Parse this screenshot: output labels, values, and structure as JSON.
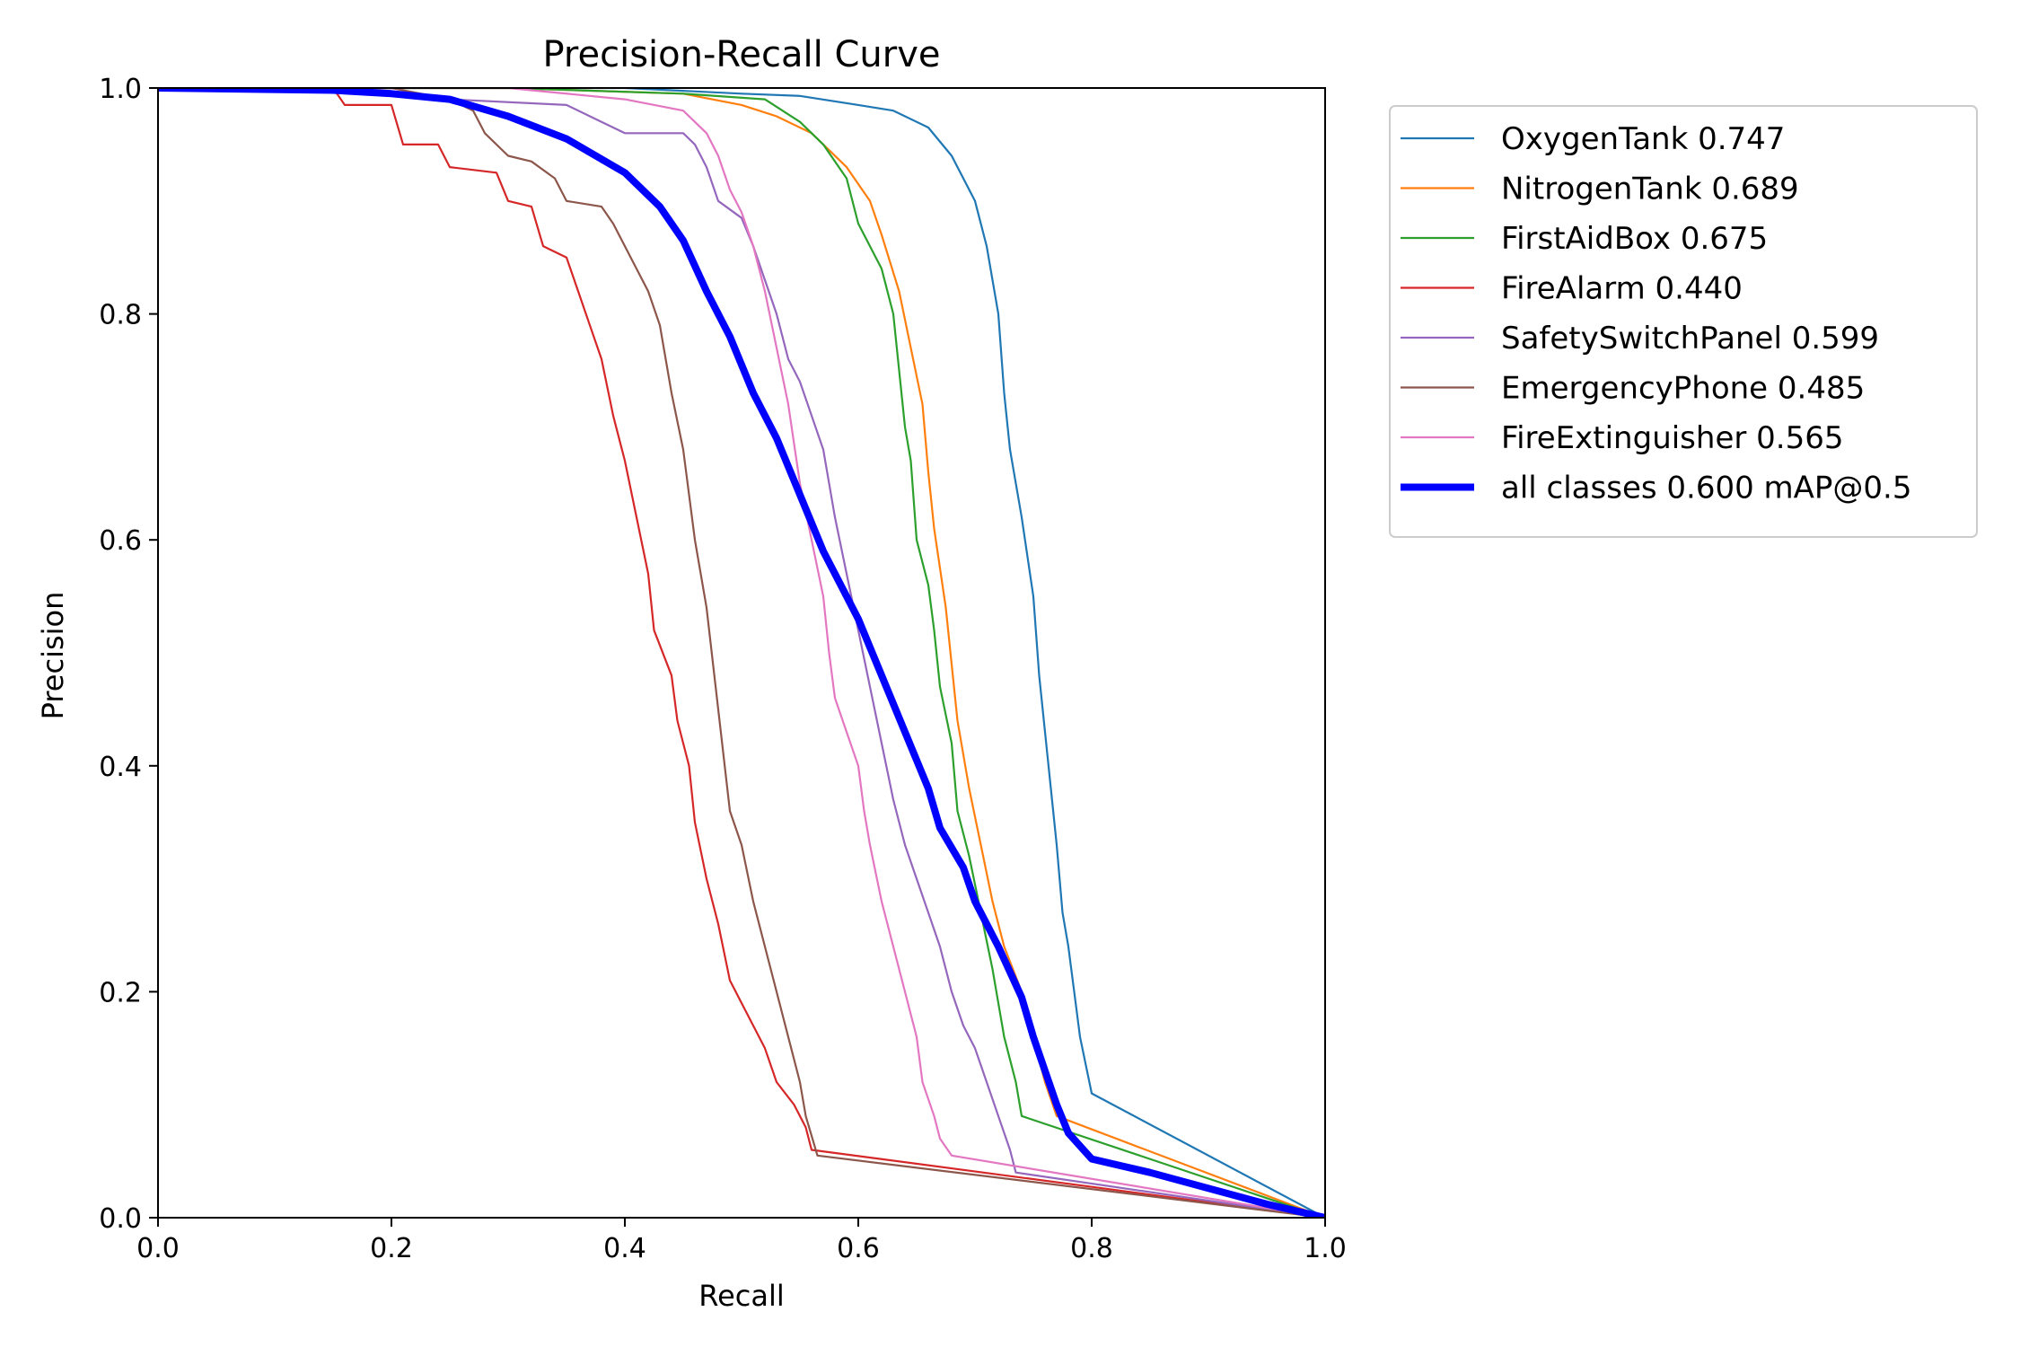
{
  "chart_data": {
    "type": "line",
    "title": "Precision-Recall Curve",
    "xlabel": "Recall",
    "ylabel": "Precision",
    "xlim": [
      0,
      1
    ],
    "ylim": [
      0,
      1
    ],
    "x_ticks": [
      "0.0",
      "0.2",
      "0.4",
      "0.6",
      "0.8",
      "1.0"
    ],
    "y_ticks": [
      "0.0",
      "0.2",
      "0.4",
      "0.6",
      "0.8",
      "1.0"
    ],
    "grid": false,
    "legend_position": "outside-top-right",
    "series": [
      {
        "name": "OxygenTank 0.747",
        "color": "#1f77b4",
        "points": [
          [
            0,
            1
          ],
          [
            0.2,
            1
          ],
          [
            0.4,
            1
          ],
          [
            0.5,
            0.995
          ],
          [
            0.55,
            0.993
          ],
          [
            0.6,
            0.985
          ],
          [
            0.63,
            0.98
          ],
          [
            0.66,
            0.965
          ],
          [
            0.68,
            0.94
          ],
          [
            0.7,
            0.9
          ],
          [
            0.71,
            0.86
          ],
          [
            0.72,
            0.8
          ],
          [
            0.725,
            0.73
          ],
          [
            0.73,
            0.68
          ],
          [
            0.74,
            0.62
          ],
          [
            0.75,
            0.55
          ],
          [
            0.755,
            0.48
          ],
          [
            0.76,
            0.43
          ],
          [
            0.765,
            0.38
          ],
          [
            0.77,
            0.33
          ],
          [
            0.775,
            0.27
          ],
          [
            0.78,
            0.24
          ],
          [
            0.785,
            0.2
          ],
          [
            0.79,
            0.16
          ],
          [
            0.8,
            0.11
          ],
          [
            1.0,
            0.0
          ]
        ]
      },
      {
        "name": "NitrogenTank 0.689",
        "color": "#ff7f0e",
        "points": [
          [
            0,
            1
          ],
          [
            0.3,
            1
          ],
          [
            0.45,
            0.995
          ],
          [
            0.5,
            0.985
          ],
          [
            0.53,
            0.975
          ],
          [
            0.56,
            0.96
          ],
          [
            0.59,
            0.93
          ],
          [
            0.61,
            0.9
          ],
          [
            0.62,
            0.87
          ],
          [
            0.635,
            0.82
          ],
          [
            0.645,
            0.77
          ],
          [
            0.655,
            0.72
          ],
          [
            0.66,
            0.66
          ],
          [
            0.665,
            0.61
          ],
          [
            0.675,
            0.54
          ],
          [
            0.68,
            0.49
          ],
          [
            0.685,
            0.44
          ],
          [
            0.695,
            0.38
          ],
          [
            0.705,
            0.33
          ],
          [
            0.715,
            0.28
          ],
          [
            0.725,
            0.24
          ],
          [
            0.74,
            0.2
          ],
          [
            0.75,
            0.16
          ],
          [
            0.76,
            0.12
          ],
          [
            0.77,
            0.09
          ],
          [
            1.0,
            0.0
          ]
        ]
      },
      {
        "name": "FirstAidBox 0.675",
        "color": "#2ca02c",
        "points": [
          [
            0,
            1
          ],
          [
            0.3,
            1
          ],
          [
            0.45,
            0.995
          ],
          [
            0.52,
            0.99
          ],
          [
            0.55,
            0.97
          ],
          [
            0.57,
            0.95
          ],
          [
            0.59,
            0.92
          ],
          [
            0.6,
            0.88
          ],
          [
            0.62,
            0.84
          ],
          [
            0.63,
            0.8
          ],
          [
            0.635,
            0.75
          ],
          [
            0.64,
            0.7
          ],
          [
            0.645,
            0.67
          ],
          [
            0.65,
            0.6
          ],
          [
            0.66,
            0.56
          ],
          [
            0.665,
            0.52
          ],
          [
            0.67,
            0.47
          ],
          [
            0.68,
            0.42
          ],
          [
            0.685,
            0.36
          ],
          [
            0.695,
            0.32
          ],
          [
            0.705,
            0.27
          ],
          [
            0.715,
            0.22
          ],
          [
            0.725,
            0.16
          ],
          [
            0.735,
            0.12
          ],
          [
            0.74,
            0.09
          ],
          [
            1.0,
            0.0
          ]
        ]
      },
      {
        "name": "FireAlarm 0.440",
        "color": "#d62728",
        "points": [
          [
            0,
            1
          ],
          [
            0.15,
            1
          ],
          [
            0.16,
            0.985
          ],
          [
            0.2,
            0.985
          ],
          [
            0.21,
            0.95
          ],
          [
            0.24,
            0.95
          ],
          [
            0.25,
            0.93
          ],
          [
            0.29,
            0.925
          ],
          [
            0.3,
            0.9
          ],
          [
            0.32,
            0.895
          ],
          [
            0.33,
            0.86
          ],
          [
            0.35,
            0.85
          ],
          [
            0.36,
            0.82
          ],
          [
            0.37,
            0.79
          ],
          [
            0.38,
            0.76
          ],
          [
            0.39,
            0.71
          ],
          [
            0.4,
            0.67
          ],
          [
            0.41,
            0.62
          ],
          [
            0.42,
            0.57
          ],
          [
            0.425,
            0.52
          ],
          [
            0.44,
            0.48
          ],
          [
            0.445,
            0.44
          ],
          [
            0.455,
            0.4
          ],
          [
            0.46,
            0.35
          ],
          [
            0.47,
            0.3
          ],
          [
            0.48,
            0.26
          ],
          [
            0.49,
            0.21
          ],
          [
            0.5,
            0.19
          ],
          [
            0.51,
            0.17
          ],
          [
            0.52,
            0.15
          ],
          [
            0.53,
            0.12
          ],
          [
            0.545,
            0.1
          ],
          [
            0.555,
            0.08
          ],
          [
            0.56,
            0.06
          ],
          [
            1.0,
            0.0
          ]
        ]
      },
      {
        "name": "SafetySwitchPanel 0.599",
        "color": "#9467bd",
        "points": [
          [
            0,
            1
          ],
          [
            0.15,
            0.998
          ],
          [
            0.25,
            0.99
          ],
          [
            0.35,
            0.985
          ],
          [
            0.38,
            0.97
          ],
          [
            0.4,
            0.96
          ],
          [
            0.45,
            0.96
          ],
          [
            0.46,
            0.95
          ],
          [
            0.47,
            0.93
          ],
          [
            0.48,
            0.9
          ],
          [
            0.5,
            0.885
          ],
          [
            0.51,
            0.86
          ],
          [
            0.52,
            0.83
          ],
          [
            0.53,
            0.8
          ],
          [
            0.54,
            0.76
          ],
          [
            0.55,
            0.74
          ],
          [
            0.56,
            0.71
          ],
          [
            0.57,
            0.68
          ],
          [
            0.58,
            0.62
          ],
          [
            0.59,
            0.57
          ],
          [
            0.6,
            0.52
          ],
          [
            0.61,
            0.47
          ],
          [
            0.62,
            0.42
          ],
          [
            0.63,
            0.37
          ],
          [
            0.64,
            0.33
          ],
          [
            0.65,
            0.3
          ],
          [
            0.66,
            0.27
          ],
          [
            0.67,
            0.24
          ],
          [
            0.68,
            0.2
          ],
          [
            0.69,
            0.17
          ],
          [
            0.7,
            0.15
          ],
          [
            0.71,
            0.12
          ],
          [
            0.72,
            0.09
          ],
          [
            0.73,
            0.06
          ],
          [
            0.735,
            0.04
          ],
          [
            1.0,
            0.0
          ]
        ]
      },
      {
        "name": "EmergencyPhone 0.485",
        "color": "#8c564b",
        "points": [
          [
            0,
            1
          ],
          [
            0.2,
            1
          ],
          [
            0.25,
            0.99
          ],
          [
            0.27,
            0.98
          ],
          [
            0.28,
            0.96
          ],
          [
            0.3,
            0.94
          ],
          [
            0.32,
            0.935
          ],
          [
            0.34,
            0.92
          ],
          [
            0.35,
            0.9
          ],
          [
            0.38,
            0.895
          ],
          [
            0.39,
            0.88
          ],
          [
            0.41,
            0.84
          ],
          [
            0.42,
            0.82
          ],
          [
            0.43,
            0.79
          ],
          [
            0.44,
            0.73
          ],
          [
            0.45,
            0.68
          ],
          [
            0.46,
            0.6
          ],
          [
            0.47,
            0.54
          ],
          [
            0.48,
            0.45
          ],
          [
            0.49,
            0.36
          ],
          [
            0.5,
            0.33
          ],
          [
            0.51,
            0.28
          ],
          [
            0.52,
            0.24
          ],
          [
            0.53,
            0.2
          ],
          [
            0.54,
            0.16
          ],
          [
            0.55,
            0.12
          ],
          [
            0.555,
            0.09
          ],
          [
            0.565,
            0.055
          ],
          [
            1.0,
            0.0
          ]
        ]
      },
      {
        "name": "FireExtinguisher 0.565",
        "color": "#e377c2",
        "points": [
          [
            0,
            1
          ],
          [
            0.3,
            1
          ],
          [
            0.4,
            0.99
          ],
          [
            0.45,
            0.98
          ],
          [
            0.47,
            0.96
          ],
          [
            0.48,
            0.94
          ],
          [
            0.49,
            0.91
          ],
          [
            0.5,
            0.89
          ],
          [
            0.51,
            0.86
          ],
          [
            0.52,
            0.82
          ],
          [
            0.53,
            0.77
          ],
          [
            0.54,
            0.72
          ],
          [
            0.55,
            0.65
          ],
          [
            0.56,
            0.6
          ],
          [
            0.57,
            0.55
          ],
          [
            0.575,
            0.5
          ],
          [
            0.58,
            0.46
          ],
          [
            0.59,
            0.43
          ],
          [
            0.6,
            0.4
          ],
          [
            0.605,
            0.36
          ],
          [
            0.61,
            0.33
          ],
          [
            0.62,
            0.28
          ],
          [
            0.63,
            0.24
          ],
          [
            0.64,
            0.2
          ],
          [
            0.65,
            0.16
          ],
          [
            0.655,
            0.12
          ],
          [
            0.665,
            0.09
          ],
          [
            0.67,
            0.07
          ],
          [
            0.68,
            0.055
          ],
          [
            1.0,
            0.0
          ]
        ]
      },
      {
        "name": "all classes 0.600 mAP@0.5",
        "color": "#0000ff",
        "points": [
          [
            0,
            1
          ],
          [
            0.15,
            0.998
          ],
          [
            0.2,
            0.995
          ],
          [
            0.25,
            0.99
          ],
          [
            0.3,
            0.975
          ],
          [
            0.35,
            0.955
          ],
          [
            0.4,
            0.925
          ],
          [
            0.43,
            0.895
          ],
          [
            0.45,
            0.865
          ],
          [
            0.47,
            0.82
          ],
          [
            0.49,
            0.78
          ],
          [
            0.51,
            0.73
          ],
          [
            0.53,
            0.69
          ],
          [
            0.55,
            0.64
          ],
          [
            0.57,
            0.59
          ],
          [
            0.59,
            0.55
          ],
          [
            0.6,
            0.53
          ],
          [
            0.62,
            0.48
          ],
          [
            0.64,
            0.43
          ],
          [
            0.66,
            0.38
          ],
          [
            0.67,
            0.345
          ],
          [
            0.69,
            0.31
          ],
          [
            0.7,
            0.28
          ],
          [
            0.72,
            0.24
          ],
          [
            0.74,
            0.195
          ],
          [
            0.75,
            0.16
          ],
          [
            0.76,
            0.13
          ],
          [
            0.77,
            0.1
          ],
          [
            0.78,
            0.075
          ],
          [
            0.8,
            0.052
          ],
          [
            0.85,
            0.04
          ],
          [
            0.9,
            0.026
          ],
          [
            0.95,
            0.012
          ],
          [
            1.0,
            0.0
          ]
        ]
      }
    ]
  }
}
